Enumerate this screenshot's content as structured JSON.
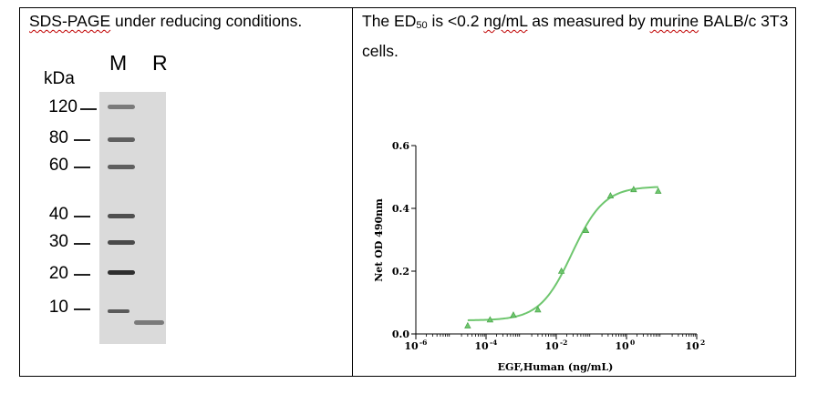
{
  "left_panel": {
    "caption": "SDS-PAGE under reducing conditions.",
    "caption_emphasis": "SDS-PAGE",
    "caption_rest": " under reducing conditions.",
    "unit_label": "kDa",
    "lanes": [
      "M",
      "R"
    ],
    "markers": [
      "120",
      "80",
      "60",
      "40",
      "30",
      "20",
      "10"
    ]
  },
  "right_panel": {
    "caption_part1": "The ED",
    "caption_sub": "50",
    "caption_part2": " is <0.2 ",
    "caption_unit": "ng/mL",
    "caption_part3": " as measured by ",
    "caption_emphasis": "murine",
    "caption_part4": " BALB/c 3T3 cells."
  },
  "chart_data": {
    "type": "scatter",
    "xlabel": "EGF,Human (ng/mL)",
    "ylabel": "Net OD 490nm",
    "xscale": "log",
    "xlim": [
      1e-06,
      100
    ],
    "ylim": [
      0,
      0.6
    ],
    "xticks": [
      {
        "value": 1e-06,
        "label": "10",
        "exp": "-6"
      },
      {
        "value": 0.0001,
        "label": "10",
        "exp": "-4"
      },
      {
        "value": 0.01,
        "label": "10",
        "exp": "-2"
      },
      {
        "value": 1,
        "label": "10",
        "exp": "0"
      },
      {
        "value": 100,
        "label": "10",
        "exp": "2"
      }
    ],
    "yticks": [
      {
        "value": 0,
        "label": "0.0"
      },
      {
        "value": 0.2,
        "label": "0.2"
      },
      {
        "value": 0.4,
        "label": "0.4"
      },
      {
        "value": 0.6,
        "label": "0.6"
      }
    ],
    "color": "#6ec66e",
    "series": [
      {
        "x": [
          3e-05,
          0.00013,
          0.0006,
          0.003,
          0.014,
          0.07,
          0.35,
          1.6,
          8
        ],
        "y": [
          0.026,
          0.045,
          0.06,
          0.077,
          0.2,
          0.33,
          0.44,
          0.46,
          0.455
        ]
      }
    ],
    "fit": {
      "bottom": 0.043,
      "top": 0.47,
      "ec50": 0.028,
      "hill": 0.95
    }
  }
}
